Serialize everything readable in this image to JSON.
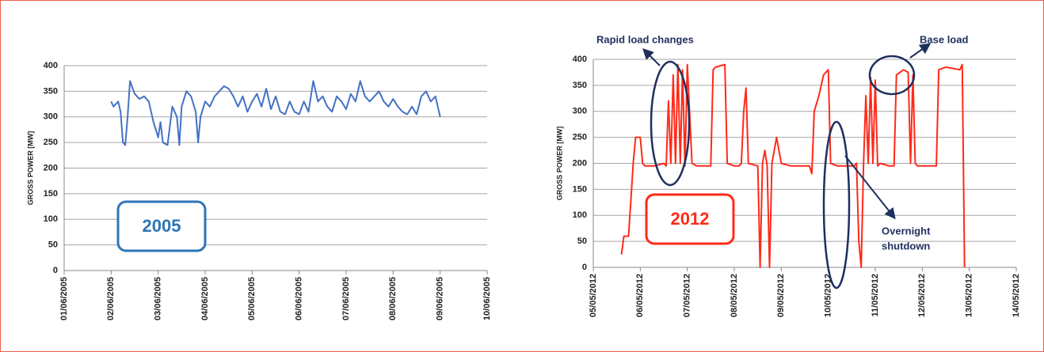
{
  "chart_data": [
    {
      "type": "line",
      "ylabel": "GROSS POWER [MW]",
      "year_label": "2005",
      "year_color": "#2e75b6",
      "xlim": [
        0,
        9
      ],
      "xticks": [
        {
          "value": 0,
          "label": "01/06/2005"
        },
        {
          "value": 1,
          "label": "02/06/2005"
        },
        {
          "value": 2,
          "label": "03/06/2005"
        },
        {
          "value": 3,
          "label": "04/06/2005"
        },
        {
          "value": 4,
          "label": "05/06/2005"
        },
        {
          "value": 5,
          "label": "06/06/2005"
        },
        {
          "value": 6,
          "label": "07/06/2005"
        },
        {
          "value": 7,
          "label": "08/06/2005"
        },
        {
          "value": 8,
          "label": "09/06/2005"
        },
        {
          "value": 9,
          "label": "10/06/2005"
        }
      ],
      "ylim": [
        0,
        400
      ],
      "yticks": [
        0,
        50,
        100,
        150,
        200,
        250,
        300,
        350,
        400
      ],
      "grid": true,
      "series": [
        {
          "color": "#4472c4",
          "x": [
            1.0,
            1.05,
            1.15,
            1.2,
            1.25,
            1.3,
            1.35,
            1.4,
            1.5,
            1.6,
            1.7,
            1.8,
            1.9,
            2.0,
            2.05,
            2.1,
            2.2,
            2.3,
            2.4,
            2.45,
            2.5,
            2.6,
            2.7,
            2.8,
            2.85,
            2.9,
            3.0,
            3.1,
            3.2,
            3.3,
            3.4,
            3.5,
            3.6,
            3.7,
            3.8,
            3.9,
            4.0,
            4.1,
            4.2,
            4.3,
            4.4,
            4.5,
            4.6,
            4.7,
            4.8,
            4.9,
            5.0,
            5.1,
            5.2,
            5.3,
            5.4,
            5.5,
            5.6,
            5.7,
            5.8,
            5.9,
            6.0,
            6.1,
            6.2,
            6.3,
            6.4,
            6.5,
            6.6,
            6.7,
            6.8,
            6.9,
            7.0,
            7.1,
            7.2,
            7.3,
            7.4,
            7.5,
            7.6,
            7.7,
            7.8,
            7.9,
            8.0
          ],
          "values": [
            330,
            320,
            330,
            310,
            250,
            245,
            300,
            370,
            345,
            335,
            340,
            330,
            290,
            260,
            290,
            250,
            245,
            320,
            300,
            245,
            320,
            350,
            340,
            310,
            250,
            300,
            330,
            320,
            340,
            350,
            360,
            355,
            340,
            320,
            340,
            310,
            330,
            345,
            320,
            355,
            315,
            340,
            310,
            305,
            330,
            310,
            305,
            330,
            310,
            370,
            330,
            340,
            320,
            310,
            340,
            330,
            315,
            345,
            330,
            370,
            340,
            330,
            340,
            350,
            330,
            320,
            335,
            320,
            310,
            305,
            320,
            305,
            340,
            350,
            330,
            340,
            300
          ]
        }
      ]
    },
    {
      "type": "line",
      "ylabel": "GROSS POWER [MW]",
      "year_label": "2012",
      "year_color": "#ff2a1a",
      "xlim": [
        0,
        9
      ],
      "xticks": [
        {
          "value": 0,
          "label": "05/05/2012"
        },
        {
          "value": 1,
          "label": "06/05/2012"
        },
        {
          "value": 2,
          "label": "07/05/2012"
        },
        {
          "value": 3,
          "label": "08/05/2012"
        },
        {
          "value": 4,
          "label": "09/05/2012"
        },
        {
          "value": 5,
          "label": "10/05/2012"
        },
        {
          "value": 6,
          "label": "11/05/2012"
        },
        {
          "value": 7,
          "label": "12/05/2012"
        },
        {
          "value": 8,
          "label": "13/05/2012"
        },
        {
          "value": 9,
          "label": "14/05/2012"
        }
      ],
      "ylim": [
        0,
        400
      ],
      "yticks": [
        0,
        50,
        100,
        150,
        200,
        250,
        300,
        350,
        400
      ],
      "grid": true,
      "annotations": [
        "Rapid load changes",
        "Base load",
        "Overnight",
        "shutdown"
      ],
      "series": [
        {
          "color": "#ff2a1a",
          "x": [
            0.6,
            0.65,
            0.75,
            0.8,
            0.85,
            0.9,
            1.0,
            1.05,
            1.1,
            1.3,
            1.5,
            1.55,
            1.6,
            1.65,
            1.7,
            1.75,
            1.8,
            1.85,
            1.9,
            1.95,
            2.0,
            2.1,
            2.2,
            2.5,
            2.55,
            2.6,
            2.8,
            2.85,
            3.0,
            3.1,
            3.15,
            3.2,
            3.25,
            3.3,
            3.5,
            3.55,
            3.6,
            3.65,
            3.7,
            3.75,
            3.8,
            3.9,
            4.0,
            4.2,
            4.6,
            4.65,
            4.7,
            4.8,
            4.9,
            5.0,
            5.05,
            5.2,
            5.55,
            5.6,
            5.65,
            5.7,
            5.75,
            5.8,
            5.85,
            5.9,
            5.95,
            6.0,
            6.05,
            6.1,
            6.3,
            6.4,
            6.45,
            6.6,
            6.7,
            6.75,
            6.8,
            6.85,
            6.9,
            7.3,
            7.35,
            7.5,
            7.8,
            7.85,
            7.9
          ],
          "values": [
            25,
            60,
            60,
            130,
            200,
            250,
            250,
            200,
            195,
            195,
            200,
            195,
            320,
            200,
            370,
            200,
            390,
            200,
            380,
            195,
            390,
            200,
            195,
            195,
            380,
            385,
            390,
            200,
            195,
            195,
            200,
            300,
            345,
            200,
            195,
            0,
            200,
            225,
            195,
            0,
            200,
            250,
            200,
            195,
            195,
            180,
            300,
            330,
            370,
            380,
            200,
            195,
            195,
            200,
            50,
            0,
            200,
            330,
            200,
            365,
            200,
            360,
            195,
            200,
            195,
            195,
            370,
            380,
            375,
            200,
            370,
            200,
            195,
            195,
            380,
            385,
            380,
            390,
            0
          ]
        }
      ]
    }
  ]
}
